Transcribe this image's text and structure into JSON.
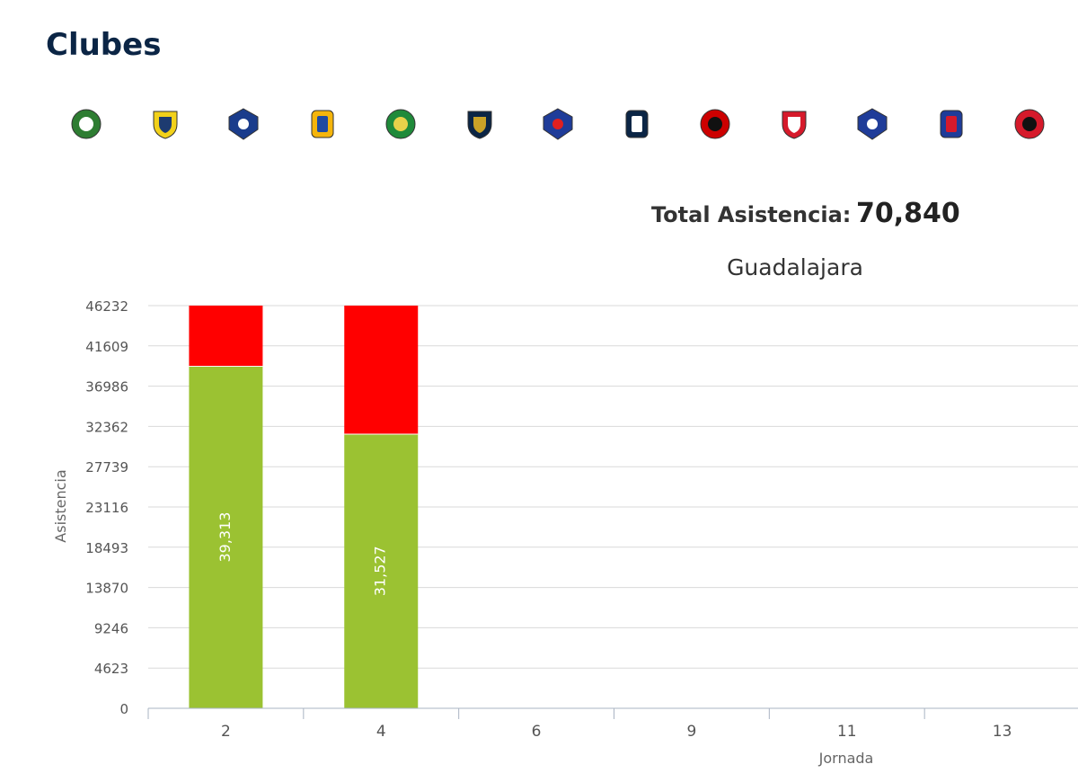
{
  "page": {
    "title": "Clubes"
  },
  "clubs": [
    {
      "name": "Santos",
      "icon": "santos-crest-icon",
      "colors": [
        "#2e7d32",
        "#ffffff"
      ]
    },
    {
      "name": "America",
      "icon": "america-crest-icon",
      "colors": [
        "#f2d11a",
        "#1d3b70"
      ]
    },
    {
      "name": "Queretaro",
      "icon": "queretaro-crest-icon",
      "colors": [
        "#1a3c8c",
        "#ffffff"
      ]
    },
    {
      "name": "Tigres",
      "icon": "tigres-crest-icon",
      "colors": [
        "#f5b50b",
        "#1f4aa1"
      ]
    },
    {
      "name": "Leon",
      "icon": "leon-crest-icon",
      "colors": [
        "#1f8a3a",
        "#e8d24a"
      ]
    },
    {
      "name": "Pumas",
      "icon": "pumas-crest-icon",
      "colors": [
        "#0b2545",
        "#c9a227"
      ]
    },
    {
      "name": "Cruz Azul",
      "icon": "cruz-azul-crest-icon",
      "colors": [
        "#1f3c99",
        "#e02020"
      ]
    },
    {
      "name": "Monterrey",
      "icon": "monterrey-crest-icon",
      "colors": [
        "#0b2545",
        "#ffffff"
      ]
    },
    {
      "name": "Atlas",
      "icon": "atlas-crest-icon",
      "colors": [
        "#cc0000",
        "#111111"
      ]
    },
    {
      "name": "Necaxa",
      "icon": "necaxa-crest-icon",
      "colors": [
        "#d61a2b",
        "#ffffff"
      ]
    },
    {
      "name": "Pachuca",
      "icon": "pachuca-crest-icon",
      "colors": [
        "#1f3c99",
        "#ffffff"
      ]
    },
    {
      "name": "Guadalajara",
      "icon": "chivas-crest-icon",
      "colors": [
        "#1f3c99",
        "#d61a2b"
      ]
    },
    {
      "name": "Tijuana",
      "icon": "tijuana-crest-icon",
      "colors": [
        "#d61a2b",
        "#111111"
      ]
    }
  ],
  "summary": {
    "label": "Total Asistencia:",
    "value": "70,840"
  },
  "chart_data": {
    "type": "bar",
    "title": "Guadalajara",
    "xlabel": "Jornada",
    "ylabel": "Asistencia",
    "categories": [
      "2",
      "4",
      "6",
      "9",
      "11",
      "13"
    ],
    "y_ticks": [
      0,
      4623,
      9246,
      13870,
      18493,
      23116,
      27739,
      32362,
      36986,
      41609,
      46232
    ],
    "ylim": [
      0,
      46232
    ],
    "stacked": true,
    "grid": true,
    "legend": "none",
    "series": [
      {
        "color": "#9bc232",
        "values": [
          39313,
          31527,
          null,
          null,
          null,
          null
        ],
        "data_labels": [
          "39,313",
          "31,527",
          "",
          "",
          "",
          ""
        ]
      },
      {
        "color": "#ff0000",
        "values": [
          6919,
          14705,
          null,
          null,
          null,
          null
        ]
      }
    ]
  }
}
